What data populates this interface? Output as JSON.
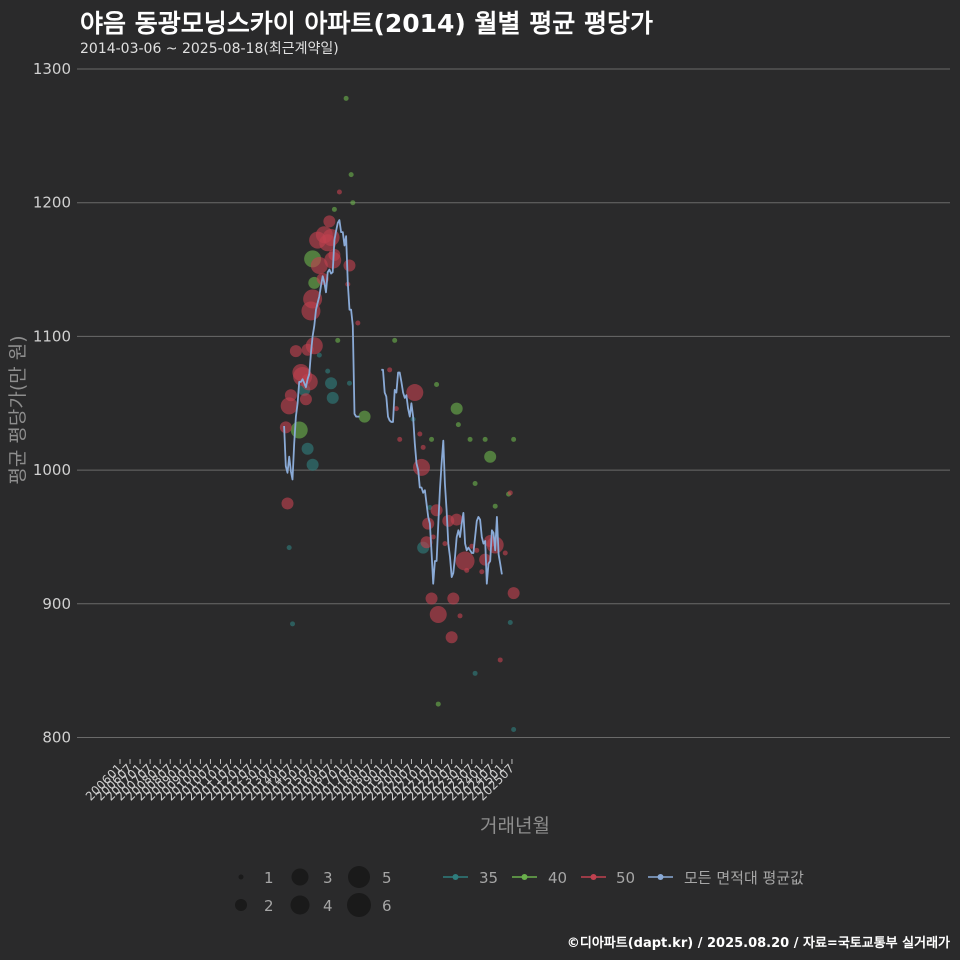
{
  "title": "야음 동광모닝스카이 아파트(2014) 월별 평균 평당가",
  "subtitle": "2014-03-06 ~ 2025-08-18(최근계약일)",
  "footer": "©디아파트(dapt.kr) / 2025.08.20 / 자료=국토교통부 실거래가",
  "colors": {
    "background": "#2a2a2b",
    "grid": "#6a6a6a",
    "s35": "#2e7d7d",
    "s40": "#6ab04c",
    "s50": "#c0414f",
    "avg": "#8aaad6"
  },
  "chart_data": {
    "type": "scatter",
    "title": "야음 동광모닝스카이 아파트(2014) 월별 평균 평당가",
    "xlabel": "거래년월",
    "ylabel": "평균 평당가(만 원)",
    "ylim": [
      790,
      1310
    ],
    "yticks": [
      800,
      900,
      1000,
      1100,
      1200,
      1300
    ],
    "xticks": [
      "200601",
      "200607",
      "200701",
      "200707",
      "200801",
      "200807",
      "200901",
      "200907",
      "201001",
      "201007",
      "201101",
      "201107",
      "201201",
      "201207",
      "201301",
      "201307",
      "201401",
      "201407",
      "201501",
      "201507",
      "201601",
      "201607",
      "201701",
      "201707",
      "201801",
      "201807",
      "201901",
      "201907",
      "202001",
      "202007",
      "202101",
      "202107",
      "202201",
      "202207",
      "202301",
      "202307",
      "202401",
      "202407",
      "202501",
      "202507"
    ],
    "size_legend": [
      "1",
      "2",
      "3",
      "4",
      "5",
      "6"
    ],
    "series": [
      {
        "name": "35",
        "points": [
          {
            "m": "2014-06",
            "y": 942,
            "n": 1
          },
          {
            "m": "2014-08",
            "y": 885,
            "n": 1
          },
          {
            "m": "2015-03",
            "y": 1060,
            "n": 2
          },
          {
            "m": "2015-05",
            "y": 1016,
            "n": 2
          },
          {
            "m": "2015-08",
            "y": 1004,
            "n": 2
          },
          {
            "m": "2015-12",
            "y": 1086,
            "n": 1
          },
          {
            "m": "2016-05",
            "y": 1074,
            "n": 1
          },
          {
            "m": "2016-07",
            "y": 1065,
            "n": 2
          },
          {
            "m": "2016-08",
            "y": 1054,
            "n": 2
          },
          {
            "m": "2017-06",
            "y": 1065,
            "n": 1
          },
          {
            "m": "2020-08",
            "y": 1038,
            "n": 1
          },
          {
            "m": "2021-02",
            "y": 942,
            "n": 2
          },
          {
            "m": "2021-06",
            "y": 972,
            "n": 1
          },
          {
            "m": "2023-09",
            "y": 848,
            "n": 1
          },
          {
            "m": "2025-06",
            "y": 886,
            "n": 1
          },
          {
            "m": "2025-08",
            "y": 806,
            "n": 1
          }
        ]
      },
      {
        "name": "40",
        "points": [
          {
            "m": "2014-12",
            "y": 1030,
            "n": 3
          },
          {
            "m": "2015-08",
            "y": 1158,
            "n": 3
          },
          {
            "m": "2015-09",
            "y": 1140,
            "n": 2
          },
          {
            "m": "2016-11",
            "y": 1097,
            "n": 1
          },
          {
            "m": "2016-09",
            "y": 1195,
            "n": 1
          },
          {
            "m": "2017-07",
            "y": 1221,
            "n": 1
          },
          {
            "m": "2017-08",
            "y": 1200,
            "n": 1
          },
          {
            "m": "2018-03",
            "y": 1040,
            "n": 2
          },
          {
            "m": "2019-09",
            "y": 1097,
            "n": 1
          },
          {
            "m": "2021-07",
            "y": 1023,
            "n": 1
          },
          {
            "m": "2021-10",
            "y": 1064,
            "n": 1
          },
          {
            "m": "2021-11",
            "y": 825,
            "n": 1
          },
          {
            "m": "2022-10",
            "y": 1046,
            "n": 2
          },
          {
            "m": "2022-11",
            "y": 1034,
            "n": 1
          },
          {
            "m": "2023-06",
            "y": 1023,
            "n": 1
          },
          {
            "m": "2023-09",
            "y": 990,
            "n": 1
          },
          {
            "m": "2024-03",
            "y": 1023,
            "n": 1
          },
          {
            "m": "2024-06",
            "y": 1010,
            "n": 2
          },
          {
            "m": "2024-09",
            "y": 973,
            "n": 1
          },
          {
            "m": "2025-05",
            "y": 982,
            "n": 1
          },
          {
            "m": "2025-08",
            "y": 1023,
            "n": 1
          },
          {
            "m": "2017-04",
            "y": 1278,
            "n": 1
          }
        ]
      },
      {
        "name": "50",
        "points": [
          {
            "m": "2014-04",
            "y": 1032,
            "n": 2
          },
          {
            "m": "2014-05",
            "y": 975,
            "n": 2
          },
          {
            "m": "2014-06",
            "y": 1048,
            "n": 3
          },
          {
            "m": "2014-07",
            "y": 1056,
            "n": 2
          },
          {
            "m": "2014-10",
            "y": 1089,
            "n": 2
          },
          {
            "m": "2015-01",
            "y": 1073,
            "n": 3
          },
          {
            "m": "2015-02",
            "y": 1070,
            "n": 4
          },
          {
            "m": "2015-04",
            "y": 1053,
            "n": 2
          },
          {
            "m": "2015-05",
            "y": 1090,
            "n": 2
          },
          {
            "m": "2015-06",
            "y": 1066,
            "n": 3
          },
          {
            "m": "2015-07",
            "y": 1119,
            "n": 4
          },
          {
            "m": "2015-08",
            "y": 1128,
            "n": 4
          },
          {
            "m": "2015-09",
            "y": 1093,
            "n": 3
          },
          {
            "m": "2015-11",
            "y": 1172,
            "n": 3
          },
          {
            "m": "2015-12",
            "y": 1153,
            "n": 3
          },
          {
            "m": "2016-02",
            "y": 1143,
            "n": 2
          },
          {
            "m": "2016-03",
            "y": 1176,
            "n": 3
          },
          {
            "m": "2016-05",
            "y": 1170,
            "n": 3
          },
          {
            "m": "2016-06",
            "y": 1186,
            "n": 2
          },
          {
            "m": "2016-07",
            "y": 1174,
            "n": 3
          },
          {
            "m": "2016-08",
            "y": 1157,
            "n": 3
          },
          {
            "m": "2016-09",
            "y": 1161,
            "n": 2
          },
          {
            "m": "2016-12",
            "y": 1208,
            "n": 1
          },
          {
            "m": "2017-05",
            "y": 1139,
            "n": 1
          },
          {
            "m": "2017-06",
            "y": 1153,
            "n": 2
          },
          {
            "m": "2017-11",
            "y": 1110,
            "n": 1
          },
          {
            "m": "2019-06",
            "y": 1075,
            "n": 1
          },
          {
            "m": "2019-10",
            "y": 1046,
            "n": 1
          },
          {
            "m": "2019-12",
            "y": 1023,
            "n": 1
          },
          {
            "m": "2020-09",
            "y": 1058,
            "n": 3
          },
          {
            "m": "2020-12",
            "y": 1027,
            "n": 1
          },
          {
            "m": "2021-01",
            "y": 1002,
            "n": 3
          },
          {
            "m": "2021-02",
            "y": 1017,
            "n": 1
          },
          {
            "m": "2021-04",
            "y": 946,
            "n": 2
          },
          {
            "m": "2021-05",
            "y": 960,
            "n": 2
          },
          {
            "m": "2021-07",
            "y": 904,
            "n": 2
          },
          {
            "m": "2021-08",
            "y": 950,
            "n": 1
          },
          {
            "m": "2021-10",
            "y": 970,
            "n": 2
          },
          {
            "m": "2021-11",
            "y": 892,
            "n": 3
          },
          {
            "m": "2022-03",
            "y": 945,
            "n": 1
          },
          {
            "m": "2022-05",
            "y": 962,
            "n": 2
          },
          {
            "m": "2022-07",
            "y": 875,
            "n": 2
          },
          {
            "m": "2022-08",
            "y": 904,
            "n": 2
          },
          {
            "m": "2022-10",
            "y": 963,
            "n": 2
          },
          {
            "m": "2022-12",
            "y": 891,
            "n": 1
          },
          {
            "m": "2023-03",
            "y": 932,
            "n": 4
          },
          {
            "m": "2023-04",
            "y": 925,
            "n": 1
          },
          {
            "m": "2023-07",
            "y": 943,
            "n": 1
          },
          {
            "m": "2023-10",
            "y": 940,
            "n": 1
          },
          {
            "m": "2024-01",
            "y": 924,
            "n": 1
          },
          {
            "m": "2024-03",
            "y": 933,
            "n": 2
          },
          {
            "m": "2024-06",
            "y": 947,
            "n": 2
          },
          {
            "m": "2024-09",
            "y": 944,
            "n": 3
          },
          {
            "m": "2024-12",
            "y": 858,
            "n": 1
          },
          {
            "m": "2025-03",
            "y": 938,
            "n": 1
          },
          {
            "m": "2025-06",
            "y": 983,
            "n": 1
          },
          {
            "m": "2025-08",
            "y": 908,
            "n": 2
          }
        ]
      }
    ],
    "average_line": {
      "name": "모든 면적대 평균값",
      "segments": [
        [
          [
            "2014-03",
            1033
          ],
          [
            "2014-04",
            1003
          ],
          [
            "2014-05",
            998
          ],
          [
            "2014-06",
            1010
          ],
          [
            "2014-07",
            999
          ],
          [
            "2014-08",
            993
          ],
          [
            "2014-09",
            1020
          ],
          [
            "2014-10",
            1040
          ],
          [
            "2014-11",
            1050
          ],
          [
            "2014-12",
            1066
          ],
          [
            "2015-01",
            1066
          ],
          [
            "2015-02",
            1068
          ],
          [
            "2015-03",
            1065
          ],
          [
            "2015-04",
            1062
          ],
          [
            "2015-05",
            1068
          ],
          [
            "2015-06",
            1072
          ],
          [
            "2015-07",
            1088
          ],
          [
            "2015-08",
            1100
          ],
          [
            "2015-09",
            1108
          ],
          [
            "2015-10",
            1120
          ],
          [
            "2015-11",
            1125
          ],
          [
            "2015-12",
            1130
          ],
          [
            "2016-01",
            1138
          ],
          [
            "2016-02",
            1145
          ],
          [
            "2016-03",
            1140
          ],
          [
            "2016-04",
            1133
          ],
          [
            "2016-05",
            1148
          ],
          [
            "2016-06",
            1150
          ],
          [
            "2016-07",
            1147
          ],
          [
            "2016-08",
            1148
          ],
          [
            "2016-09",
            1172
          ],
          [
            "2016-10",
            1179
          ],
          [
            "2016-11",
            1185
          ],
          [
            "2016-12",
            1187
          ],
          [
            "2017-01",
            1178
          ],
          [
            "2017-02",
            1178
          ],
          [
            "2017-03",
            1168
          ],
          [
            "2017-04",
            1175
          ],
          [
            "2017-05",
            1140
          ],
          [
            "2017-06",
            1120
          ],
          [
            "2017-07",
            1120
          ],
          [
            "2017-08",
            1108
          ],
          [
            "2017-09",
            1042
          ],
          [
            "2017-10",
            1040
          ],
          [
            "2017-11",
            1040
          ],
          [
            "2017-12",
            1040
          ]
        ],
        [
          [
            "2019-01",
            1075
          ],
          [
            "2019-02",
            1075
          ],
          [
            "2019-03",
            1058
          ],
          [
            "2019-04",
            1055
          ],
          [
            "2019-05",
            1040
          ],
          [
            "2019-06",
            1037
          ],
          [
            "2019-07",
            1036
          ],
          [
            "2019-08",
            1036
          ],
          [
            "2019-09",
            1060
          ],
          [
            "2019-10",
            1058
          ],
          [
            "2019-11",
            1073
          ],
          [
            "2019-12",
            1073
          ],
          [
            "2020-01",
            1066
          ],
          [
            "2020-02",
            1058
          ],
          [
            "2020-03",
            1054
          ],
          [
            "2020-04",
            1056
          ],
          [
            "2020-05",
            1046
          ],
          [
            "2020-06",
            1040
          ],
          [
            "2020-07",
            1050
          ],
          [
            "2020-08",
            1040
          ],
          [
            "2020-09",
            1020
          ],
          [
            "2020-10",
            1005
          ],
          [
            "2020-11",
            1000
          ],
          [
            "2020-12",
            987
          ],
          [
            "2021-01",
            987
          ],
          [
            "2021-02",
            983
          ],
          [
            "2021-03",
            985
          ],
          [
            "2021-04",
            975
          ],
          [
            "2021-05",
            965
          ],
          [
            "2021-06",
            960
          ],
          [
            "2021-07",
            938
          ],
          [
            "2021-08",
            915
          ],
          [
            "2021-09",
            932
          ],
          [
            "2021-10",
            932
          ],
          [
            "2021-11",
            960
          ],
          [
            "2021-12",
            985
          ],
          [
            "2022-01",
            1005
          ],
          [
            "2022-02",
            1022
          ],
          [
            "2022-03",
            990
          ],
          [
            "2022-04",
            970
          ],
          [
            "2022-05",
            945
          ],
          [
            "2022-06",
            935
          ],
          [
            "2022-07",
            920
          ],
          [
            "2022-08",
            923
          ],
          [
            "2022-09",
            935
          ],
          [
            "2022-10",
            950
          ],
          [
            "2022-11",
            955
          ],
          [
            "2022-12",
            950
          ],
          [
            "2023-01",
            960
          ],
          [
            "2023-02",
            968
          ],
          [
            "2023-03",
            945
          ],
          [
            "2023-04",
            940
          ],
          [
            "2023-05",
            942
          ],
          [
            "2023-06",
            940
          ],
          [
            "2023-07",
            938
          ],
          [
            "2023-08",
            938
          ],
          [
            "2023-09",
            950
          ],
          [
            "2023-10",
            962
          ],
          [
            "2023-11",
            965
          ],
          [
            "2023-12",
            963
          ],
          [
            "2024-01",
            950
          ],
          [
            "2024-02",
            945
          ],
          [
            "2024-03",
            947
          ],
          [
            "2024-04",
            915
          ],
          [
            "2024-05",
            930
          ],
          [
            "2024-06",
            932
          ],
          [
            "2024-07",
            955
          ],
          [
            "2024-08",
            953
          ],
          [
            "2024-09",
            940
          ],
          [
            "2024-10",
            965
          ],
          [
            "2024-11",
            937
          ],
          [
            "2024-12",
            930
          ],
          [
            "2025-01",
            922
          ]
        ]
      ]
    }
  },
  "legend": {
    "sizes": [
      "1",
      "2",
      "3",
      "4",
      "5",
      "6"
    ],
    "series": [
      "35",
      "40",
      "50",
      "모든 면적대 평균값"
    ]
  }
}
